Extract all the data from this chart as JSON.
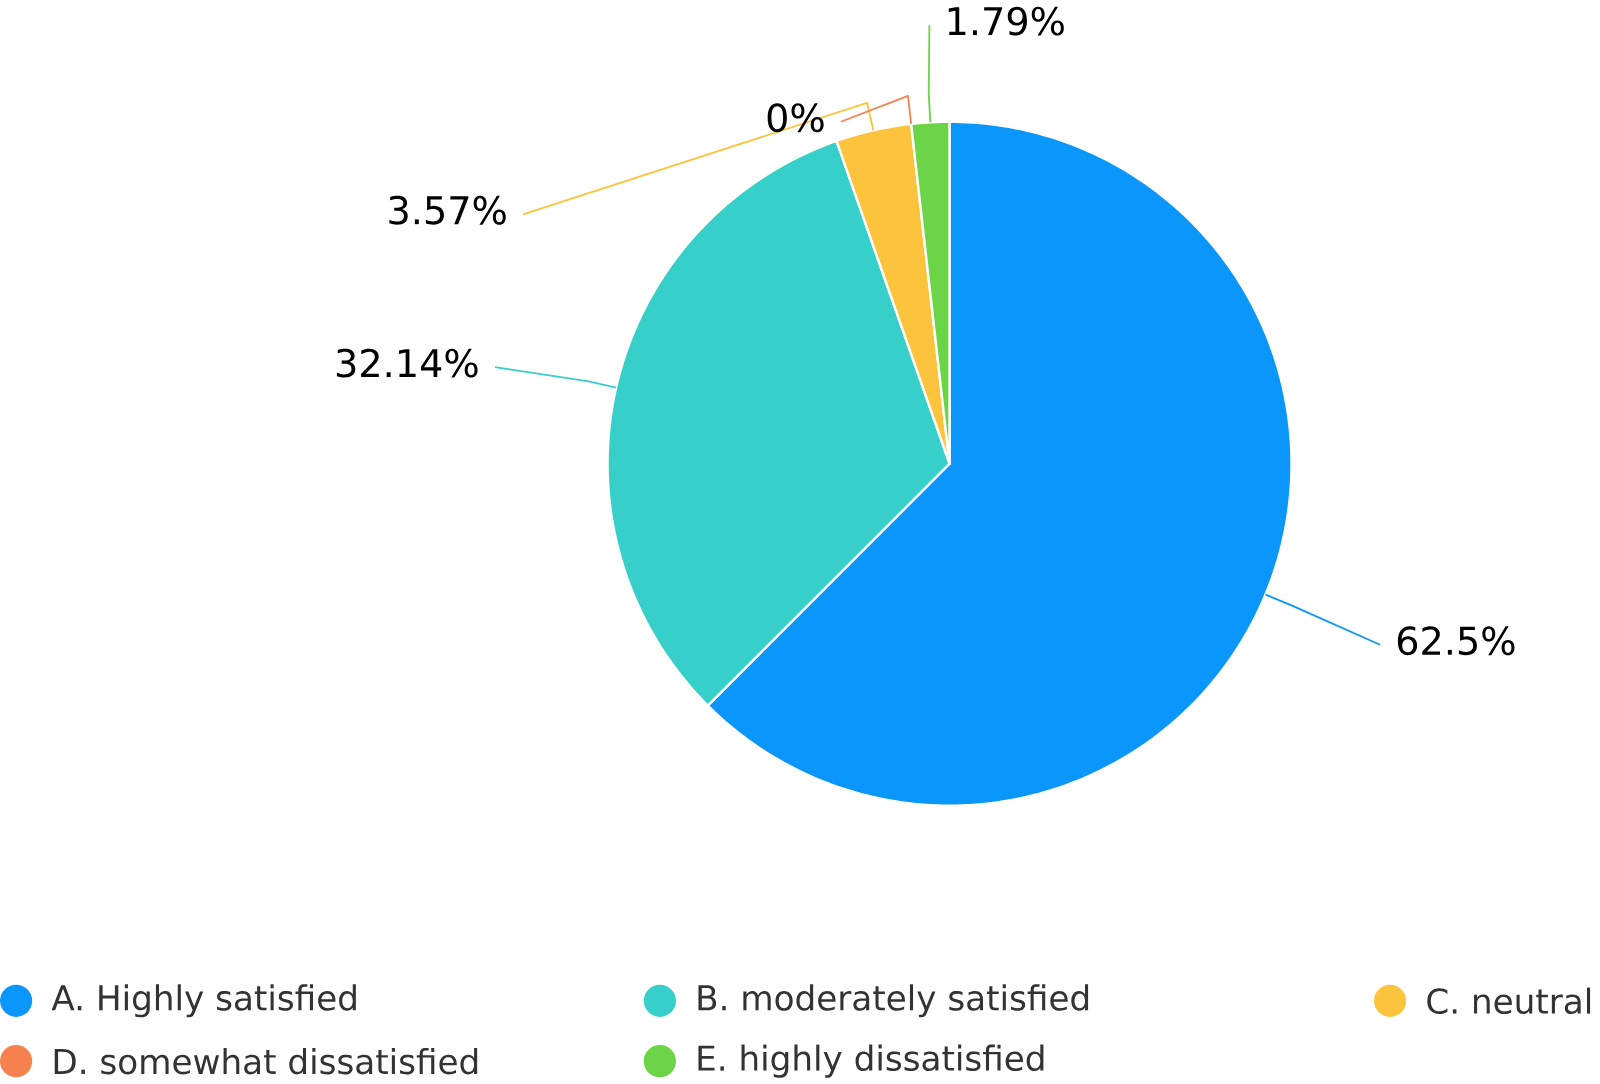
{
  "chart_data": {
    "type": "pie",
    "categories": [
      "A. Highly satisfied",
      "B. moderately satisfied",
      "C. neutral",
      "D. somewhat dissatisfied",
      "E. highly dissatisfied"
    ],
    "values": [
      62.5,
      32.14,
      3.57,
      0,
      1.79
    ],
    "value_labels": [
      "62.5%",
      "32.14%",
      "3.57%",
      "0%",
      "1.79%"
    ],
    "colors": [
      "#0a96fa",
      "#36cfc9",
      "#fcc43c",
      "#f6814f",
      "#6bd447"
    ],
    "legend": "bottom"
  }
}
